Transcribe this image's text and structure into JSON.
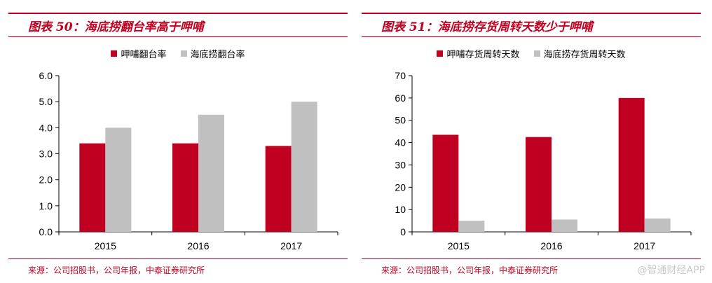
{
  "chart_data": [
    {
      "type": "bar",
      "title": "图表 50：海底捞翻台率高于呷哺",
      "categories": [
        "2015",
        "2016",
        "2017"
      ],
      "series": [
        {
          "name": "呷哺翻台率",
          "color": "#c00020",
          "values": [
            3.4,
            3.4,
            3.3
          ]
        },
        {
          "name": "海底捞翻台率",
          "color": "#c0c0c0",
          "values": [
            4.0,
            4.5,
            5.0
          ]
        }
      ],
      "yticks": [
        "0.0",
        "1.0",
        "2.0",
        "3.0",
        "4.0",
        "5.0",
        "6.0"
      ],
      "ylim": [
        0,
        6
      ],
      "legend": "top-center",
      "source": "来源：公司招股书，公司年报，中泰证券研究所"
    },
    {
      "type": "bar",
      "title": "图表 51：海底捞存货周转天数少于呷哺",
      "categories": [
        "2015",
        "2016",
        "2017"
      ],
      "series": [
        {
          "name": "呷哺存货周转天数",
          "color": "#c00020",
          "values": [
            43.5,
            42.5,
            60
          ]
        },
        {
          "name": "海底捞存货周转天数",
          "color": "#c0c0c0",
          "values": [
            5,
            5.5,
            6
          ]
        }
      ],
      "yticks": [
        "0",
        "10",
        "20",
        "30",
        "40",
        "50",
        "60",
        "70"
      ],
      "ylim": [
        0,
        70
      ],
      "legend": "top-center",
      "source": "来源：公司招股书，公司年报，中泰证券研究所"
    }
  ],
  "watermark": "@智通财经APP"
}
